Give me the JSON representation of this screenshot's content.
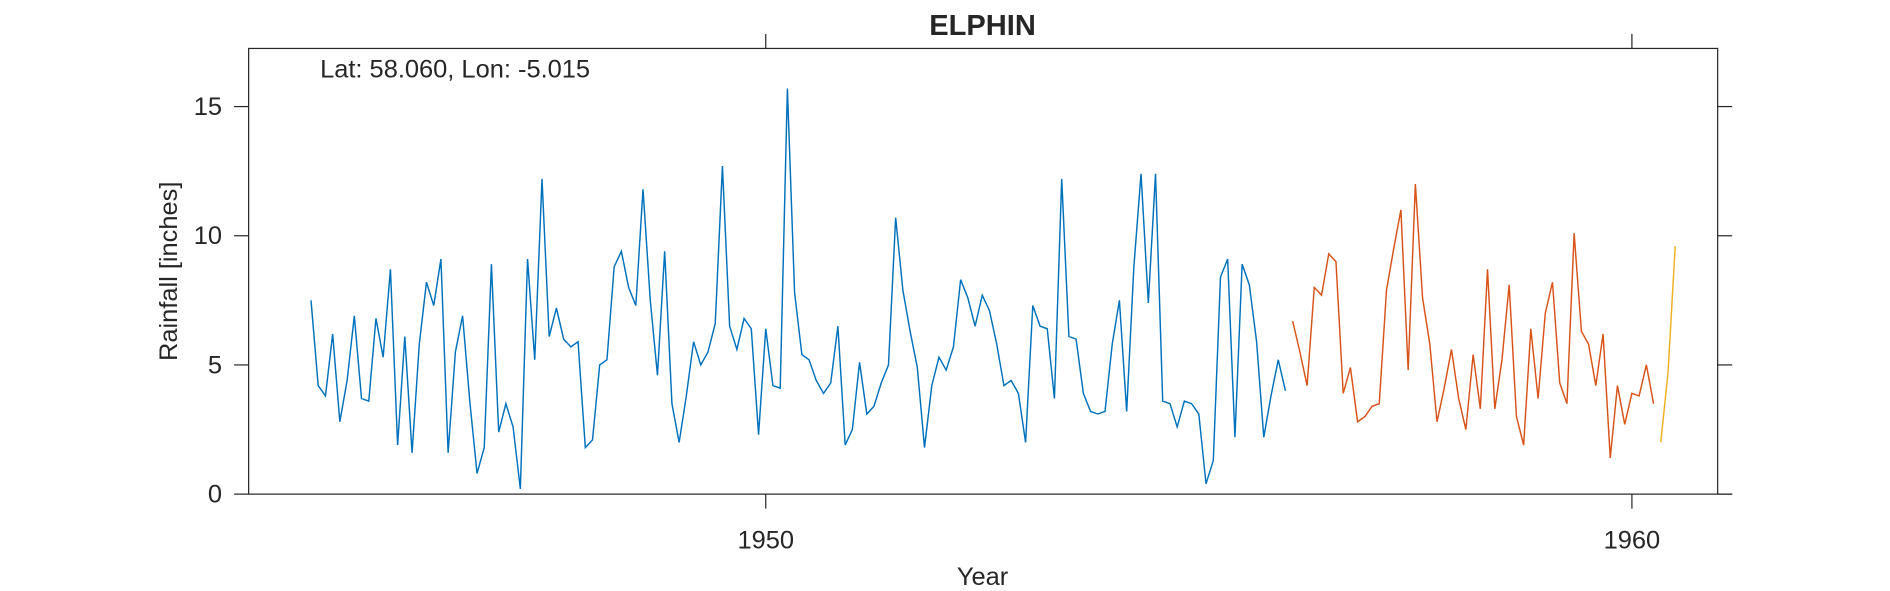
{
  "chart_data": {
    "type": "line",
    "title": "ELPHIN",
    "annotation": "Lat: 58.060, Lon: -5.015",
    "xlabel": "Year",
    "ylabel": "Rainfall [inches]",
    "xlim": [
      1944.03,
      1960.99
    ],
    "xticks": [
      1950,
      1960
    ],
    "ylim": [
      0,
      17.25
    ],
    "yticks": [
      0,
      5,
      10,
      15
    ],
    "grid": false,
    "series": [
      {
        "color": "#0072BD",
        "x": [
          1944.75,
          1944.833,
          1944.917,
          1945.0,
          1945.083,
          1945.167,
          1945.25,
          1945.333,
          1945.417,
          1945.5,
          1945.583,
          1945.667,
          1945.75,
          1945.833,
          1945.917,
          1946.0,
          1946.083,
          1946.167,
          1946.25,
          1946.333,
          1946.417,
          1946.5,
          1946.583,
          1946.667,
          1946.75,
          1946.833,
          1946.917,
          1947.0,
          1947.083,
          1947.167,
          1947.25,
          1947.333,
          1947.417,
          1947.5,
          1947.583,
          1947.667,
          1947.75,
          1947.833,
          1947.917,
          1948.0,
          1948.083,
          1948.167,
          1948.25,
          1948.333,
          1948.417,
          1948.5,
          1948.583,
          1948.667,
          1948.75,
          1948.833,
          1948.917,
          1949.0,
          1949.083,
          1949.167,
          1949.25,
          1949.333,
          1949.417,
          1949.5,
          1949.583,
          1949.667,
          1949.75,
          1949.833,
          1949.917,
          1950.0,
          1950.083,
          1950.167,
          1950.25,
          1950.333,
          1950.417,
          1950.5,
          1950.583,
          1950.667,
          1950.75,
          1950.833,
          1950.917,
          1951.0,
          1951.083,
          1951.167,
          1951.25,
          1951.333,
          1951.417,
          1951.5,
          1951.583,
          1951.667,
          1951.75,
          1951.833,
          1951.917,
          1952.0,
          1952.083,
          1952.167,
          1952.25,
          1952.333,
          1952.417,
          1952.5,
          1952.583,
          1952.667,
          1952.75,
          1952.833,
          1952.917,
          1953.0,
          1953.083,
          1953.167,
          1953.25,
          1953.333,
          1953.417,
          1953.5,
          1953.583,
          1953.667,
          1953.75,
          1953.833,
          1953.917,
          1954.0,
          1954.083,
          1954.167,
          1954.25,
          1954.333,
          1954.417,
          1954.5,
          1954.583,
          1954.667,
          1954.75,
          1954.833,
          1954.917,
          1955.0,
          1955.083,
          1955.167,
          1955.25,
          1955.333,
          1955.417,
          1955.5,
          1955.583,
          1955.667,
          1955.75,
          1955.833,
          1955.917,
          1956.0
        ],
        "values": [
          7.5,
          4.2,
          3.8,
          6.2,
          2.8,
          4.4,
          6.9,
          3.7,
          3.6,
          6.8,
          5.3,
          8.7,
          1.9,
          6.1,
          1.6,
          5.8,
          8.2,
          7.3,
          9.1,
          1.6,
          5.5,
          6.9,
          3.6,
          0.8,
          1.8,
          8.9,
          2.4,
          3.5,
          2.6,
          0.2,
          9.1,
          5.2,
          12.2,
          6.1,
          7.2,
          6.0,
          5.7,
          5.9,
          1.8,
          2.1,
          5.0,
          5.2,
          8.8,
          9.4,
          8.0,
          7.3,
          11.8,
          7.5,
          4.6,
          9.4,
          3.5,
          2.0,
          3.8,
          5.9,
          5.0,
          5.5,
          6.6,
          12.7,
          6.5,
          5.6,
          6.8,
          6.4,
          2.3,
          6.4,
          4.2,
          4.1,
          15.7,
          7.8,
          5.4,
          5.2,
          4.4,
          3.9,
          4.3,
          6.5,
          1.9,
          2.5,
          5.1,
          3.1,
          3.4,
          4.3,
          5.0,
          10.7,
          7.9,
          6.3,
          4.9,
          1.8,
          4.2,
          5.3,
          4.8,
          5.7,
          8.3,
          7.6,
          6.5,
          7.7,
          7.1,
          5.8,
          4.2,
          4.4,
          3.9,
          2.0,
          7.3,
          6.5,
          6.4,
          3.7,
          12.2,
          6.1,
          6.0,
          3.9,
          3.2,
          3.1,
          3.2,
          5.8,
          7.5,
          3.2,
          8.8,
          12.4,
          7.4,
          12.4,
          3.6,
          3.5,
          2.6,
          3.6,
          3.5,
          3.1,
          0.4,
          1.3,
          8.4,
          9.1,
          2.2,
          8.9,
          8.1,
          5.9,
          2.2,
          3.8,
          5.2,
          4.0
        ]
      },
      {
        "color": "#D95319",
        "x": [
          1956.083,
          1956.167,
          1956.25,
          1956.333,
          1956.417,
          1956.5,
          1956.583,
          1956.667,
          1956.75,
          1956.833,
          1956.917,
          1957.0,
          1957.083,
          1957.167,
          1957.25,
          1957.333,
          1957.417,
          1957.5,
          1957.583,
          1957.667,
          1957.75,
          1957.833,
          1957.917,
          1958.0,
          1958.083,
          1958.167,
          1958.25,
          1958.333,
          1958.417,
          1958.5,
          1958.583,
          1958.667,
          1958.75,
          1958.833,
          1958.917,
          1959.0,
          1959.083,
          1959.167,
          1959.25,
          1959.333,
          1959.417,
          1959.5,
          1959.583,
          1959.667,
          1959.75,
          1959.833,
          1959.917,
          1960.0,
          1960.083,
          1960.167,
          1960.25
        ],
        "values": [
          6.7,
          5.5,
          4.2,
          8.0,
          7.7,
          9.3,
          9.0,
          3.9,
          4.9,
          2.8,
          3.0,
          3.4,
          3.5,
          7.9,
          9.5,
          11.0,
          4.8,
          12.0,
          7.6,
          5.8,
          2.8,
          4.1,
          5.6,
          3.7,
          2.5,
          5.4,
          3.3,
          8.7,
          3.3,
          5.2,
          8.1,
          3.0,
          1.9,
          6.4,
          3.7,
          7.0,
          8.2,
          4.3,
          3.5,
          10.1,
          6.3,
          5.8,
          4.2,
          6.2,
          1.4,
          4.2,
          2.7,
          3.9,
          3.8,
          5.0,
          3.5
        ]
      },
      {
        "color": "#EDB120",
        "x": [
          1960.333,
          1960.417,
          1960.5
        ],
        "values": [
          2.0,
          4.7,
          9.6
        ]
      }
    ]
  }
}
